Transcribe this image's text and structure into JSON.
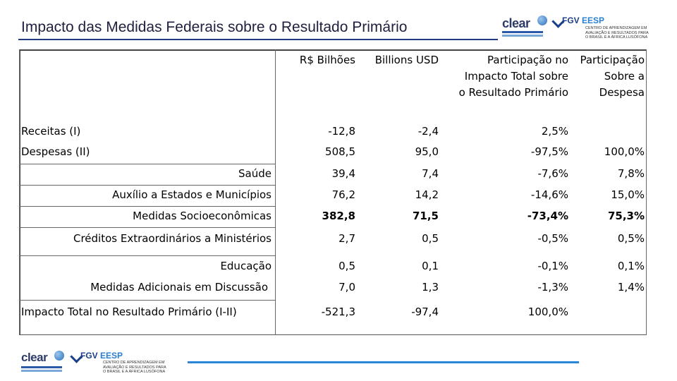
{
  "slide": {
    "title": "Impacto das Medidas Federais sobre o Resultado Primário"
  },
  "logos": {
    "clear": "clear",
    "fgv": "FGV",
    "eesp": "EESP",
    "fgv_tagline": "CENTRO DE APRENDIZAGEM EM\nAVALIAÇÃO E RESULTADOS PARA\nO BRASIL E A ÁFRICA LUSÓFONA",
    "clear_tagline": "centro de aprendizagem em avaliação e resultados"
  },
  "table": {
    "headers": {
      "col1": "R$ Bilhões",
      "col2": "Billions USD",
      "col3_line1": "Participação no",
      "col3_line2": "Impacto Total sobre",
      "col3_line3": "o Resultado Primário",
      "col4_line1": "Participação",
      "col4_line2": "Sobre a",
      "col4_line3": "Despesa"
    },
    "rows": [
      {
        "label": "Receitas (I)",
        "brl": "-12,8",
        "usd": "-2,4",
        "share_total": "2,5%",
        "share_exp": ""
      },
      {
        "label": "Despesas (II)",
        "brl": "508,5",
        "usd": "95,0",
        "share_total": "-97,5%",
        "share_exp": "100,0%"
      },
      {
        "label": "Saúde",
        "brl": "39,4",
        "usd": "7,4",
        "share_total": "-7,6%",
        "share_exp": "7,8%"
      },
      {
        "label": "Auxílio a Estados e Municípios",
        "brl": "76,2",
        "usd": "14,2",
        "share_total": "-14,6%",
        "share_exp": "15,0%"
      },
      {
        "label": "Medidas Socioeconômicas",
        "brl": "382,8",
        "usd": "71,5",
        "share_total": "-73,4%",
        "share_exp": "75,3%"
      },
      {
        "label": "Créditos Extraordinários a Ministérios",
        "brl": "2,7",
        "usd": "0,5",
        "share_total": "-0,5%",
        "share_exp": "0,5%"
      },
      {
        "label": "Educação",
        "brl": "0,5",
        "usd": "0,1",
        "share_total": "-0,1%",
        "share_exp": "0,1%"
      },
      {
        "label": "Medidas Adicionais em Discussão",
        "brl": "7,0",
        "usd": "1,3",
        "share_total": "-1,3%",
        "share_exp": "1,4%"
      },
      {
        "label": "Impacto Total no Resultado Primário (I-II)",
        "brl": "-521,3",
        "usd": "-97,4",
        "share_total": "100,0%",
        "share_exp": ""
      }
    ]
  }
}
